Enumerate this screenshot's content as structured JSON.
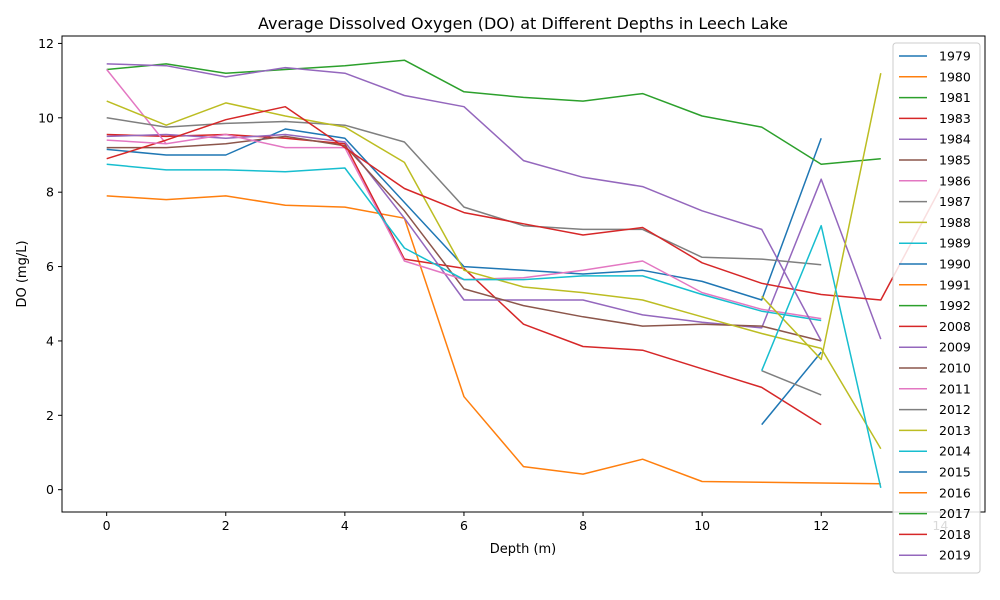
{
  "chart_data": {
    "type": "line",
    "title": "Average Dissolved Oxygen (DO) at Different Depths in Leech Lake",
    "xlabel": "Depth (m)",
    "ylabel": "DO (mg/L)",
    "xlim": [
      -0.75,
      14.75
    ],
    "ylim": [
      -0.6,
      12.2
    ],
    "xticks": [
      0,
      2,
      4,
      6,
      8,
      10,
      12,
      14
    ],
    "yticks": [
      0,
      2,
      4,
      6,
      8,
      10,
      12
    ],
    "grid": false,
    "legend_position": "right",
    "series": [
      {
        "name": "1979",
        "color": "#1f77b4",
        "points": [
          [
            0,
            9.15
          ],
          [
            1,
            9.0
          ],
          [
            2,
            9.0
          ],
          [
            3,
            9.7
          ],
          [
            4,
            9.45
          ],
          [
            6,
            6.0
          ],
          [
            7,
            5.9
          ],
          [
            8,
            5.8
          ],
          [
            9,
            5.9
          ],
          [
            10,
            5.6
          ],
          [
            11,
            5.1
          ],
          [
            12,
            9.45
          ]
        ]
      },
      {
        "name": "1980",
        "color": "#ff7f0e",
        "points": [
          [
            0,
            7.9
          ],
          [
            1,
            7.8
          ],
          [
            2,
            7.9
          ],
          [
            3,
            7.65
          ],
          [
            4,
            7.6
          ],
          [
            5,
            7.3
          ],
          [
            6,
            2.5
          ],
          [
            7,
            0.62
          ],
          [
            8,
            0.42
          ],
          [
            9,
            0.82
          ],
          [
            10,
            0.22
          ],
          [
            11,
            0.2
          ],
          [
            12,
            0.18
          ],
          [
            13,
            0.16
          ]
        ]
      },
      {
        "name": "1981",
        "color": "#2ca02c",
        "points": [
          [
            0,
            11.3
          ],
          [
            1,
            11.45
          ],
          [
            2,
            11.2
          ],
          [
            3,
            11.3
          ],
          [
            4,
            11.4
          ],
          [
            5,
            11.55
          ],
          [
            6,
            10.7
          ],
          [
            7,
            10.55
          ],
          [
            8,
            10.45
          ],
          [
            9,
            10.65
          ],
          [
            10,
            10.05
          ],
          [
            11,
            9.75
          ],
          [
            12,
            8.75
          ],
          [
            13,
            8.9
          ]
        ]
      },
      {
        "name": "1983",
        "color": "#d62728",
        "points": [
          [
            0,
            9.55
          ],
          [
            1,
            9.5
          ],
          [
            2,
            9.55
          ],
          [
            3,
            9.45
          ],
          [
            4,
            9.3
          ],
          [
            5,
            6.2
          ],
          [
            6,
            5.95
          ],
          [
            7,
            4.45
          ],
          [
            8,
            3.85
          ],
          [
            9,
            3.75
          ],
          [
            10,
            3.25
          ],
          [
            11,
            2.75
          ],
          [
            12,
            1.75
          ]
        ]
      },
      {
        "name": "1984",
        "color": "#9467bd",
        "points": [
          [
            0,
            9.5
          ],
          [
            1,
            9.55
          ],
          [
            2,
            9.45
          ],
          [
            3,
            9.55
          ],
          [
            4,
            9.35
          ],
          [
            5,
            7.3
          ],
          [
            6,
            5.1
          ],
          [
            7,
            5.1
          ],
          [
            8,
            5.1
          ],
          [
            9,
            4.7
          ],
          [
            10,
            4.5
          ],
          [
            11,
            4.35
          ],
          [
            12,
            8.35
          ],
          [
            13,
            4.05
          ]
        ]
      },
      {
        "name": "1985",
        "color": "#8c564b",
        "points": [
          [
            0,
            9.2
          ],
          [
            1,
            9.2
          ],
          [
            2,
            9.3
          ],
          [
            3,
            9.5
          ],
          [
            4,
            9.25
          ],
          [
            5,
            7.5
          ],
          [
            6,
            5.4
          ],
          [
            7,
            4.95
          ],
          [
            8,
            4.65
          ],
          [
            9,
            4.4
          ],
          [
            10,
            4.45
          ],
          [
            11,
            4.4
          ],
          [
            12,
            4.0
          ]
        ]
      },
      {
        "name": "1986",
        "color": "#e377c2",
        "points": [
          [
            0,
            11.3
          ],
          [
            1,
            9.3
          ],
          [
            2,
            9.55
          ],
          [
            3,
            9.2
          ],
          [
            4,
            9.2
          ],
          [
            5,
            6.15
          ],
          [
            6,
            5.65
          ],
          [
            7,
            5.7
          ],
          [
            8,
            5.9
          ],
          [
            9,
            6.15
          ],
          [
            10,
            5.3
          ],
          [
            11,
            4.85
          ],
          [
            12,
            4.6
          ]
        ]
      },
      {
        "name": "1987",
        "color": "#7f7f7f",
        "points": [
          [
            0,
            10.0
          ],
          [
            1,
            9.75
          ],
          [
            2,
            9.85
          ],
          [
            3,
            9.9
          ],
          [
            4,
            9.8
          ],
          [
            5,
            9.35
          ],
          [
            6,
            7.6
          ],
          [
            7,
            7.1
          ],
          [
            8,
            7.0
          ],
          [
            9,
            7.0
          ],
          [
            10,
            6.25
          ],
          [
            11,
            6.2
          ],
          [
            12,
            6.05
          ]
        ]
      },
      {
        "name": "1988",
        "color": "#bcbd22",
        "points": [
          [
            0,
            10.45
          ],
          [
            1,
            9.8
          ],
          [
            2,
            10.4
          ],
          [
            3,
            10.05
          ],
          [
            4,
            9.75
          ],
          [
            5,
            8.8
          ],
          [
            6,
            5.9
          ],
          [
            7,
            5.45
          ],
          [
            8,
            5.3
          ],
          [
            9,
            5.1
          ],
          [
            10,
            4.65
          ],
          [
            11,
            4.2
          ],
          [
            12,
            3.8
          ],
          [
            13,
            1.1
          ]
        ]
      },
      {
        "name": "1989",
        "color": "#17becf",
        "points": [
          [
            0,
            8.75
          ],
          [
            1,
            8.6
          ],
          [
            2,
            8.6
          ],
          [
            3,
            8.55
          ],
          [
            4,
            8.65
          ],
          [
            5,
            6.5
          ],
          [
            6,
            5.65
          ],
          [
            7,
            5.65
          ],
          [
            8,
            5.75
          ],
          [
            9,
            5.75
          ],
          [
            10,
            5.25
          ],
          [
            11,
            4.8
          ],
          [
            12,
            4.55
          ]
        ]
      },
      {
        "name": "1990",
        "color": "#1f77b4",
        "points": [
          [
            11,
            1.75
          ],
          [
            12,
            3.7
          ]
        ]
      },
      {
        "name": "1991",
        "color": "#ff7f0e",
        "points": []
      },
      {
        "name": "1992",
        "color": "#2ca02c",
        "points": []
      },
      {
        "name": "2008",
        "color": "#d62728",
        "points": [
          [
            0,
            8.9
          ],
          [
            1,
            9.4
          ],
          [
            2,
            9.95
          ],
          [
            3,
            10.3
          ],
          [
            4,
            9.2
          ],
          [
            5,
            8.1
          ],
          [
            6,
            7.45
          ],
          [
            7,
            7.15
          ],
          [
            8,
            6.85
          ],
          [
            9,
            7.05
          ],
          [
            10,
            6.1
          ],
          [
            11,
            5.55
          ],
          [
            12,
            5.25
          ],
          [
            13,
            5.1
          ],
          [
            14,
            8.1
          ]
        ]
      },
      {
        "name": "2009",
        "color": "#9467bd",
        "points": [
          [
            0,
            11.45
          ],
          [
            1,
            11.4
          ],
          [
            2,
            11.1
          ],
          [
            3,
            11.35
          ],
          [
            4,
            11.2
          ],
          [
            5,
            10.6
          ],
          [
            6,
            10.3
          ],
          [
            7,
            8.85
          ],
          [
            8,
            8.4
          ],
          [
            9,
            8.15
          ],
          [
            10,
            7.5
          ],
          [
            11,
            7.0
          ],
          [
            12,
            4.0
          ]
        ]
      },
      {
        "name": "2010",
        "color": "#8c564b",
        "points": []
      },
      {
        "name": "2011",
        "color": "#e377c2",
        "points": [
          [
            0,
            9.4
          ],
          [
            1,
            9.3
          ]
        ]
      },
      {
        "name": "2012",
        "color": "#7f7f7f",
        "points": [
          [
            11,
            3.2
          ],
          [
            12,
            2.55
          ]
        ]
      },
      {
        "name": "2013",
        "color": "#bcbd22",
        "points": [
          [
            11,
            5.2
          ],
          [
            12,
            3.5
          ],
          [
            13,
            11.2
          ]
        ]
      },
      {
        "name": "2014",
        "color": "#17becf",
        "points": [
          [
            11,
            3.2
          ],
          [
            12,
            7.1
          ],
          [
            13,
            0.05
          ]
        ]
      },
      {
        "name": "2015",
        "color": "#1f77b4",
        "points": []
      },
      {
        "name": "2016",
        "color": "#ff7f0e",
        "points": []
      },
      {
        "name": "2017",
        "color": "#2ca02c",
        "points": []
      },
      {
        "name": "2018",
        "color": "#d62728",
        "points": []
      },
      {
        "name": "2019",
        "color": "#9467bd",
        "points": []
      }
    ]
  }
}
